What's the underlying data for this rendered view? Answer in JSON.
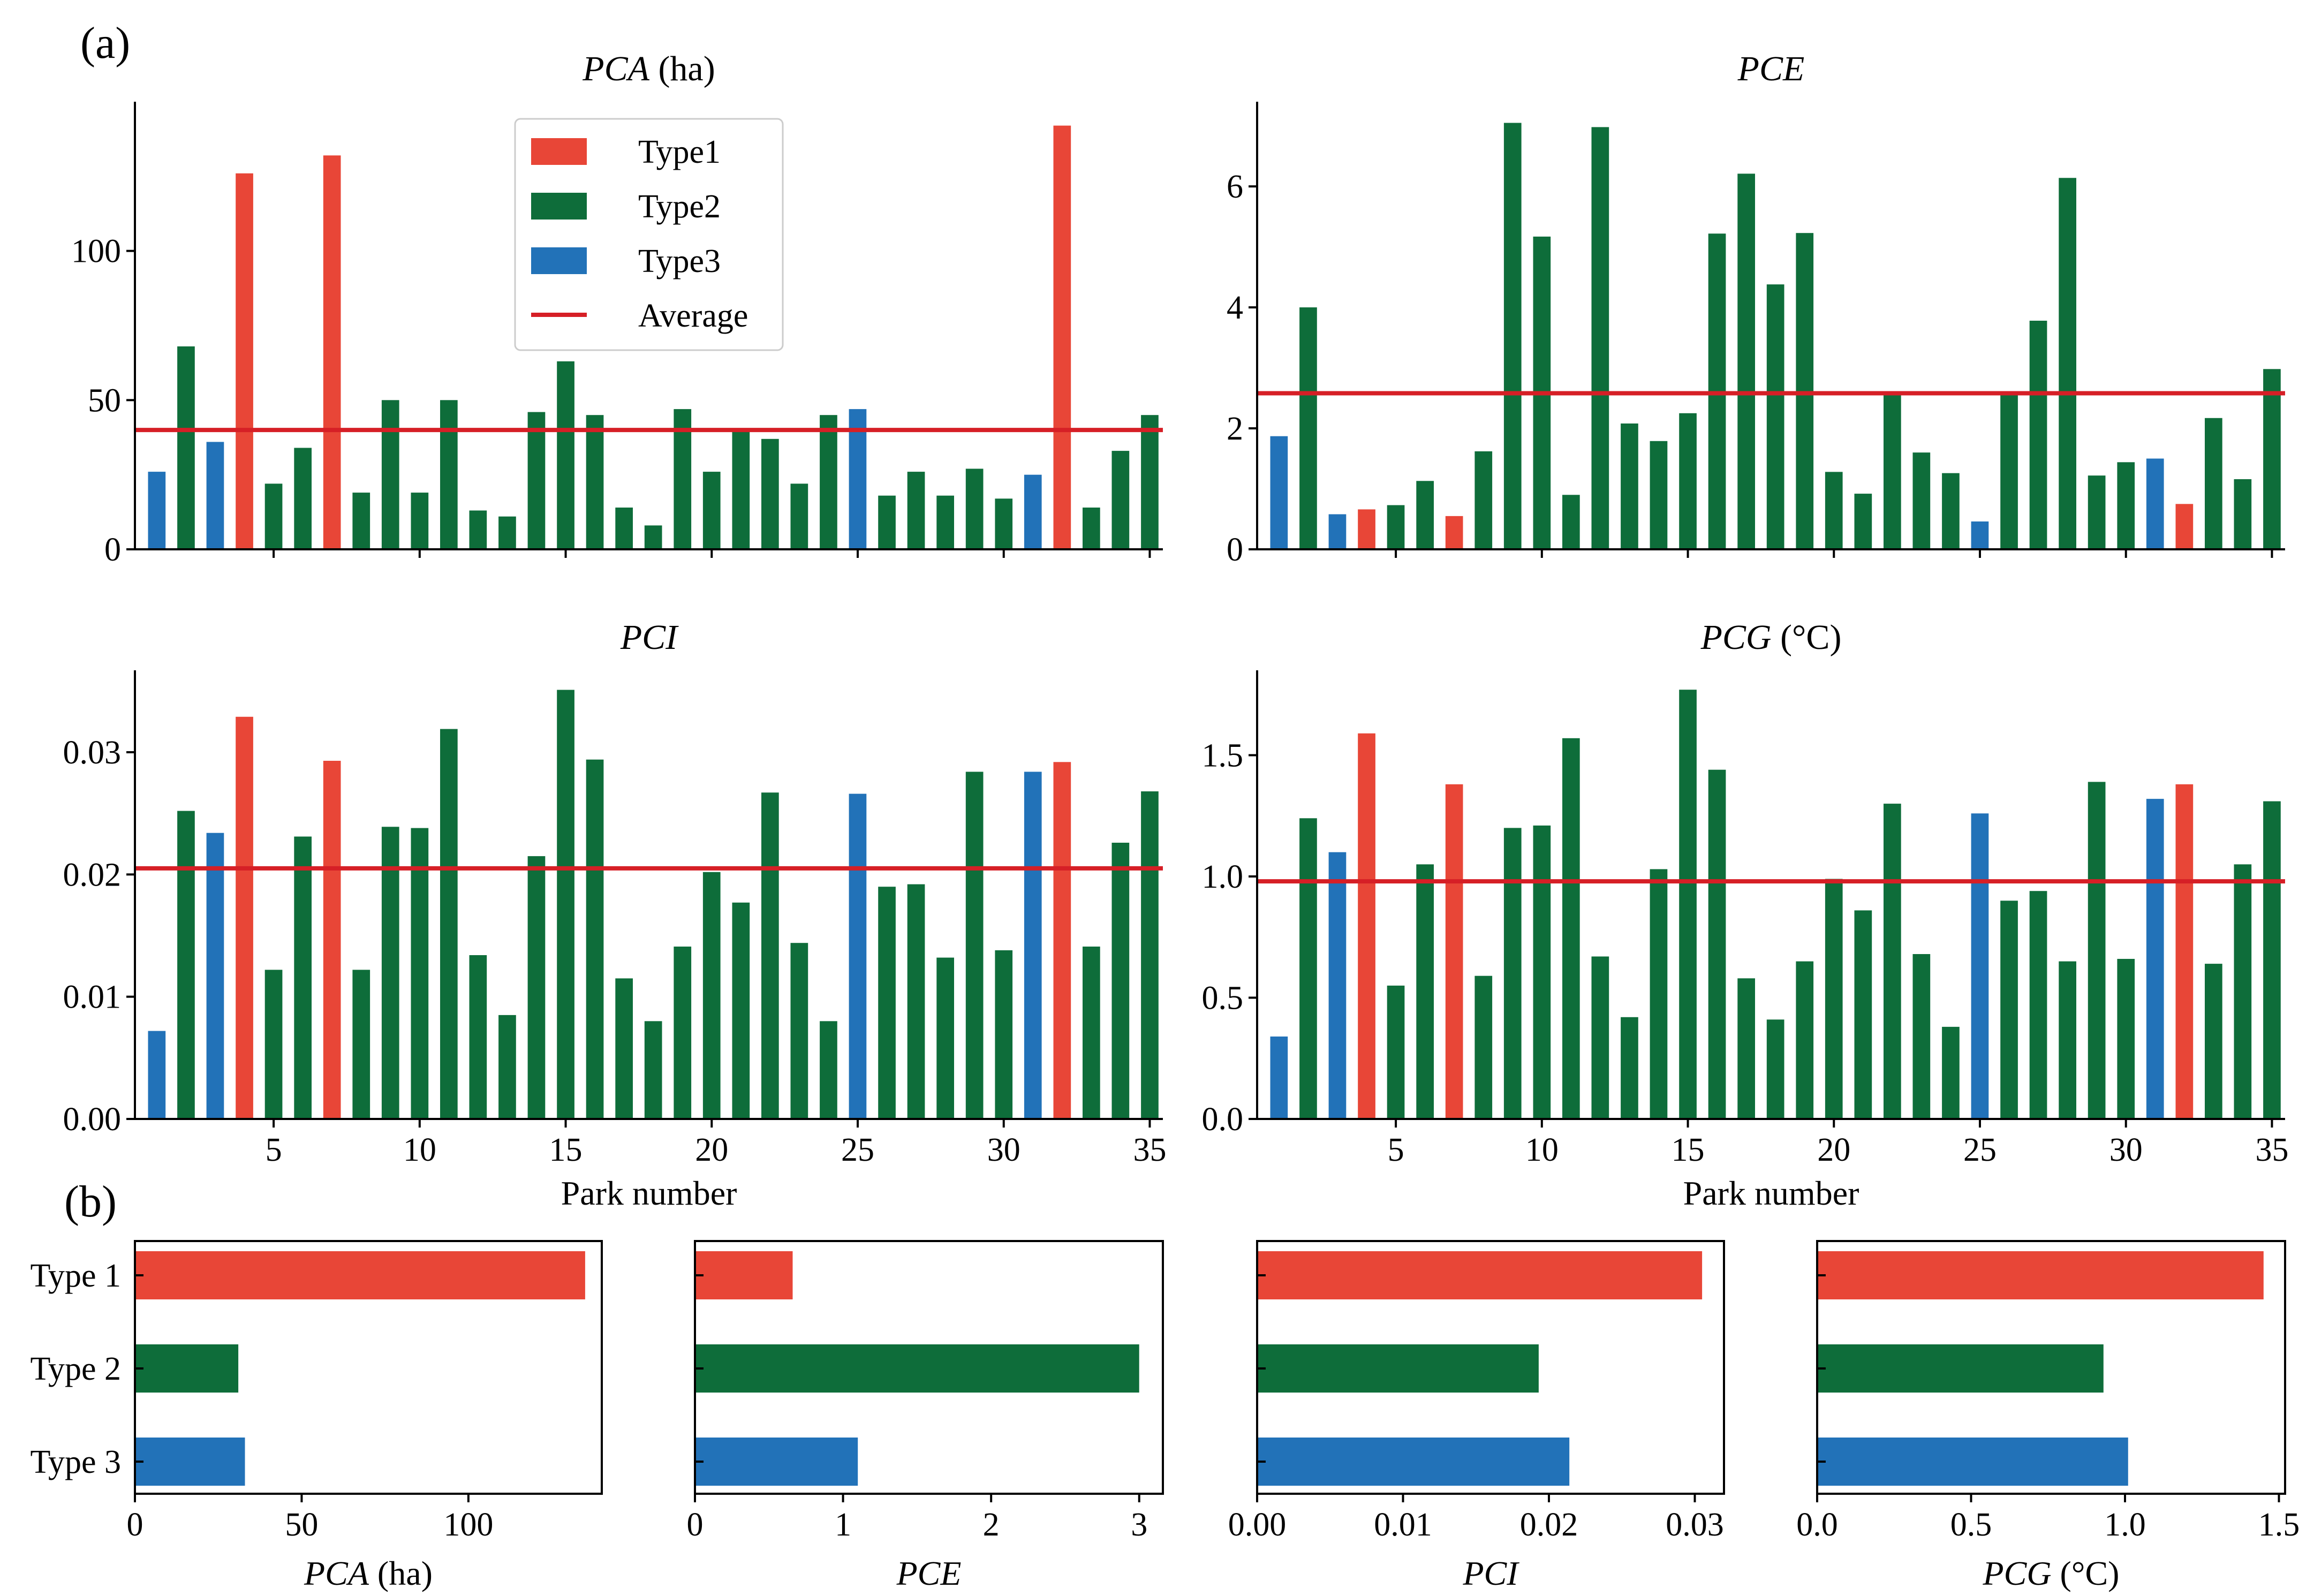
{
  "panel_labels": {
    "a": "(a)",
    "b": "(b)"
  },
  "colors": {
    "Type1": "#e84637",
    "Type2": "#0e6d3a",
    "Type3": "#2272b8",
    "Average": "#d61f26"
  },
  "legend": {
    "items": [
      {
        "label": "Type1",
        "key": "Type1",
        "kind": "patch"
      },
      {
        "label": "Type2",
        "key": "Type2",
        "kind": "patch"
      },
      {
        "label": "Type3",
        "key": "Type3",
        "kind": "patch"
      },
      {
        "label": "Average",
        "key": "Average",
        "kind": "line"
      }
    ]
  },
  "chart_data": [
    {
      "id": "pca",
      "type": "bar",
      "title_italic": "PCA",
      "title_unit": " (ha)",
      "xlabel": "",
      "park_numbers": [
        1,
        2,
        3,
        4,
        5,
        6,
        7,
        8,
        9,
        10,
        11,
        12,
        13,
        14,
        15,
        16,
        17,
        18,
        19,
        20,
        21,
        22,
        23,
        24,
        25,
        26,
        27,
        28,
        29,
        30,
        31,
        32,
        33,
        34,
        35
      ],
      "values": [
        26,
        68,
        36,
        126,
        22,
        34,
        132,
        19,
        50,
        19,
        50,
        13,
        11,
        46,
        63,
        45,
        14,
        8,
        47,
        26,
        40,
        37,
        22,
        45,
        47,
        18,
        26,
        18,
        27,
        17,
        25,
        142,
        14,
        33,
        45
      ],
      "types": [
        3,
        2,
        3,
        1,
        2,
        2,
        1,
        2,
        2,
        2,
        2,
        2,
        2,
        2,
        2,
        2,
        2,
        2,
        2,
        2,
        2,
        2,
        2,
        2,
        3,
        2,
        2,
        2,
        2,
        2,
        3,
        1,
        2,
        2,
        2
      ],
      "average": 40,
      "ylim": [
        0,
        150
      ],
      "yticks": [
        0,
        50,
        100
      ],
      "ytick_labels": [
        "0",
        "50",
        "100"
      ],
      "xticks": [
        5,
        10,
        15,
        20,
        25,
        30,
        35
      ],
      "xtick_labels": [],
      "legend": true
    },
    {
      "id": "pce",
      "type": "bar",
      "title_italic": "PCE",
      "title_unit": "",
      "xlabel": "",
      "park_numbers": [
        1,
        2,
        3,
        4,
        5,
        6,
        7,
        8,
        9,
        10,
        11,
        12,
        13,
        14,
        15,
        16,
        17,
        18,
        19,
        20,
        21,
        22,
        23,
        24,
        25,
        26,
        27,
        28,
        29,
        30,
        31,
        32,
        33,
        34,
        35
      ],
      "values": [
        1.87,
        4.0,
        0.58,
        0.66,
        0.73,
        1.13,
        0.55,
        1.62,
        7.05,
        5.17,
        0.9,
        6.98,
        2.08,
        1.79,
        2.25,
        5.22,
        6.21,
        4.38,
        5.23,
        1.28,
        0.92,
        2.58,
        1.6,
        1.26,
        0.46,
        2.6,
        3.78,
        6.14,
        1.22,
        1.44,
        1.5,
        0.75,
        2.17,
        1.16,
        2.98
      ],
      "types": [
        3,
        2,
        3,
        1,
        2,
        2,
        1,
        2,
        2,
        2,
        2,
        2,
        2,
        2,
        2,
        2,
        2,
        2,
        2,
        2,
        2,
        2,
        2,
        2,
        3,
        2,
        2,
        2,
        2,
        2,
        3,
        1,
        2,
        2,
        2
      ],
      "average": 2.58,
      "ylim": [
        0,
        7.4
      ],
      "yticks": [
        0,
        2,
        4,
        6
      ],
      "ytick_labels": [
        "0",
        "2",
        "4",
        "6"
      ],
      "xticks": [
        5,
        10,
        15,
        20,
        25,
        30,
        35
      ],
      "xtick_labels": [],
      "legend": false
    },
    {
      "id": "pci",
      "type": "bar",
      "title_italic": "PCI",
      "title_unit": "",
      "xlabel": "Park number",
      "park_numbers": [
        1,
        2,
        3,
        4,
        5,
        6,
        7,
        8,
        9,
        10,
        11,
        12,
        13,
        14,
        15,
        16,
        17,
        18,
        19,
        20,
        21,
        22,
        23,
        24,
        25,
        26,
        27,
        28,
        29,
        30,
        31,
        32,
        33,
        34,
        35
      ],
      "values": [
        0.0072,
        0.0252,
        0.0234,
        0.0329,
        0.0122,
        0.0231,
        0.0293,
        0.0122,
        0.0239,
        0.0238,
        0.0319,
        0.0134,
        0.0085,
        0.0215,
        0.0351,
        0.0294,
        0.0115,
        0.008,
        0.0141,
        0.0202,
        0.0177,
        0.0267,
        0.0144,
        0.008,
        0.0266,
        0.019,
        0.0192,
        0.0132,
        0.0284,
        0.0138,
        0.0284,
        0.0292,
        0.0141,
        0.0226,
        0.0268
      ],
      "types": [
        3,
        2,
        3,
        1,
        2,
        2,
        1,
        2,
        2,
        2,
        2,
        2,
        2,
        2,
        2,
        2,
        2,
        2,
        2,
        2,
        2,
        2,
        2,
        2,
        3,
        2,
        2,
        2,
        2,
        2,
        3,
        1,
        2,
        2,
        2
      ],
      "average": 0.0205,
      "ylim": [
        0,
        0.0367
      ],
      "yticks": [
        0,
        0.01,
        0.02,
        0.03
      ],
      "ytick_labels": [
        "0.00",
        "0.01",
        "0.02",
        "0.03"
      ],
      "xticks": [
        5,
        10,
        15,
        20,
        25,
        30,
        35
      ],
      "xtick_labels": [
        "5",
        "10",
        "15",
        "20",
        "25",
        "30",
        "35"
      ],
      "legend": false
    },
    {
      "id": "pcg",
      "type": "bar",
      "title_italic": "PCG",
      "title_unit": " (°C)",
      "xlabel": "Park number",
      "park_numbers": [
        1,
        2,
        3,
        4,
        5,
        6,
        7,
        8,
        9,
        10,
        11,
        12,
        13,
        14,
        15,
        16,
        17,
        18,
        19,
        20,
        21,
        22,
        23,
        24,
        25,
        26,
        27,
        28,
        29,
        30,
        31,
        32,
        33,
        34,
        35
      ],
      "values": [
        0.34,
        1.24,
        1.1,
        1.59,
        0.55,
        1.05,
        1.38,
        0.59,
        1.2,
        1.21,
        1.57,
        0.67,
        0.42,
        1.03,
        1.77,
        1.44,
        0.58,
        0.41,
        0.65,
        0.99,
        0.86,
        1.3,
        0.68,
        0.38,
        1.26,
        0.9,
        0.94,
        0.65,
        1.39,
        0.66,
        1.32,
        1.38,
        0.64,
        1.05,
        1.31
      ],
      "types": [
        3,
        2,
        3,
        1,
        2,
        2,
        1,
        2,
        2,
        2,
        2,
        2,
        2,
        2,
        2,
        2,
        2,
        2,
        2,
        2,
        2,
        2,
        2,
        2,
        3,
        2,
        2,
        2,
        2,
        2,
        3,
        1,
        2,
        2,
        2
      ],
      "average": 0.98,
      "ylim": [
        0,
        1.85
      ],
      "yticks": [
        0,
        0.5,
        1.0,
        1.5
      ],
      "ytick_labels": [
        "0.0",
        "0.5",
        "1.0",
        "1.5"
      ],
      "xticks": [
        5,
        10,
        15,
        20,
        25,
        30,
        35
      ],
      "xtick_labels": [
        "5",
        "10",
        "15",
        "20",
        "25",
        "30",
        "35"
      ],
      "legend": false
    },
    {
      "id": "b_pca",
      "type": "bar",
      "orientation": "horizontal",
      "categories": [
        "Type 1",
        "Type 2",
        "Type 3"
      ],
      "values": [
        135,
        31,
        33
      ],
      "xlim": [
        0,
        140
      ],
      "xticks": [
        0,
        50,
        100
      ],
      "xtick_labels": [
        "0",
        "50",
        "100"
      ],
      "xlabel_italic": "PCA",
      "xlabel_unit": " (ha)",
      "show_categories": true
    },
    {
      "id": "b_pce",
      "type": "bar",
      "orientation": "horizontal",
      "categories": [
        "Type 1",
        "Type 2",
        "Type 3"
      ],
      "values": [
        0.66,
        3.0,
        1.1
      ],
      "xlim": [
        0,
        3.16
      ],
      "xticks": [
        0,
        1,
        2,
        3
      ],
      "xtick_labels": [
        "0",
        "1",
        "2",
        "3"
      ],
      "xlabel_italic": "PCE",
      "xlabel_unit": "",
      "show_categories": false
    },
    {
      "id": "b_pci",
      "type": "bar",
      "orientation": "horizontal",
      "categories": [
        "Type 1",
        "Type 2",
        "Type 3"
      ],
      "values": [
        0.0305,
        0.0193,
        0.0214
      ],
      "xlim": [
        0,
        0.032
      ],
      "xticks": [
        0,
        0.01,
        0.02,
        0.03
      ],
      "xtick_labels": [
        "0.00",
        "0.01",
        "0.02",
        "0.03"
      ],
      "xlabel_italic": "PCI",
      "xlabel_unit": "",
      "show_categories": false
    },
    {
      "id": "b_pcg",
      "type": "bar",
      "orientation": "horizontal",
      "categories": [
        "Type 1",
        "Type 2",
        "Type 3"
      ],
      "values": [
        1.45,
        0.93,
        1.01
      ],
      "xlim": [
        0,
        1.52
      ],
      "xticks": [
        0,
        0.5,
        1.0,
        1.5
      ],
      "xtick_labels": [
        "0.0",
        "0.5",
        "1.0",
        "1.5"
      ],
      "xlabel_italic": "PCG",
      "xlabel_unit": " (°C)",
      "show_categories": false
    }
  ]
}
